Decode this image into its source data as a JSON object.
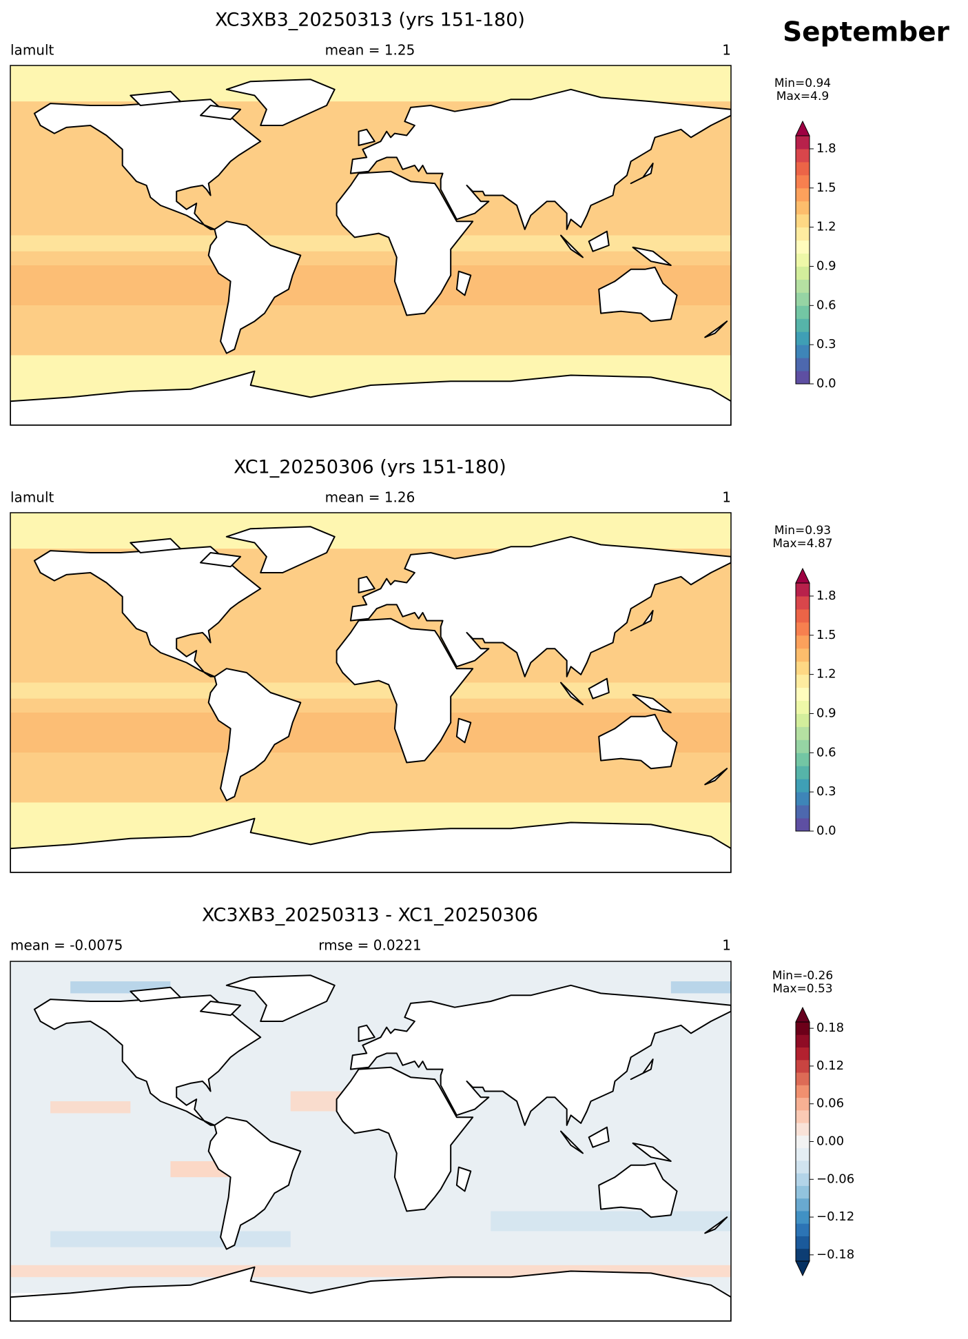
{
  "figure_title": "September",
  "panels": [
    {
      "title": "XC3XB3_20250313 (yrs 151-180)",
      "left_label": "lamult",
      "center_label": "mean = 1.25",
      "right_label": "1",
      "colorbar": {
        "min_label": "Min=0.94",
        "max_label": "Max=4.9",
        "extend": "max",
        "ylim": [
          0,
          1.9
        ],
        "yticks": [
          {
            "value": 0,
            "label": "0.0"
          },
          0.3,
          0.6,
          0.9,
          1.2,
          1.5,
          1.8
        ],
        "colors": [
          "#5e4fa2",
          "#4d68ae",
          "#3e85b8",
          "#3f9fb5",
          "#56b4a9",
          "#73c6a4",
          "#96d4a4",
          "#b5e0a2",
          "#d3ee9c",
          "#eef8a8",
          "#fffcbd",
          "#feeca0",
          "#fed884",
          "#fdbd6c",
          "#fca15c",
          "#f7804f",
          "#ec6447",
          "#d9464b",
          "#b8214b"
        ],
        "over_color": "#9e0142"
      },
      "map_style": "field"
    },
    {
      "title": "XC1_20250306 (yrs 151-180)",
      "left_label": "lamult",
      "center_label": "mean = 1.26",
      "right_label": "1",
      "colorbar": {
        "min_label": "Min=0.93",
        "max_label": "Max=4.87",
        "extend": "max",
        "ylim": [
          0,
          1.9
        ],
        "yticks": [
          {
            "value": 0,
            "label": "0.0"
          },
          0.3,
          0.6,
          0.9,
          1.2,
          1.5,
          1.8
        ],
        "colors": [
          "#5e4fa2",
          "#4d68ae",
          "#3e85b8",
          "#3f9fb5",
          "#56b4a9",
          "#73c6a4",
          "#96d4a4",
          "#b5e0a2",
          "#d3ee9c",
          "#eef8a8",
          "#fffcbd",
          "#feeca0",
          "#fed884",
          "#fdbd6c",
          "#fca15c",
          "#f7804f",
          "#ec6447",
          "#d9464b",
          "#b8214b"
        ],
        "over_color": "#9e0142"
      },
      "map_style": "field"
    },
    {
      "title": "XC3XB3_20250313 - XC1_20250306",
      "left_label": "mean = -0.0075",
      "center_label": "rmse = 0.0221",
      "right_label": "1",
      "colorbar": {
        "min_label": "Min=-0.26",
        "max_label": "Max=0.53",
        "extend": "both",
        "ylim": [
          -0.19,
          0.19
        ],
        "yticks": [
          {
            "value": -0.18,
            "label": "−0.18"
          },
          {
            "value": -0.12,
            "label": "−0.12"
          },
          {
            "value": -0.06,
            "label": "−0.06"
          },
          {
            "value": 0,
            "label": "0.00"
          },
          0.06,
          0.12,
          0.18
        ],
        "colors": [
          "#0d3d73",
          "#1b5a9b",
          "#2c74b5",
          "#4191c4",
          "#69a9d0",
          "#92c3de",
          "#b3d4e8",
          "#d0e3ef",
          "#e4eef4",
          "#f2f2f2",
          "#f9e2d8",
          "#fbcab5",
          "#f7b093",
          "#f0906f",
          "#dd6b56",
          "#c94441",
          "#b2212f",
          "#8f0c25",
          "#6c0019"
        ],
        "over_color": "#67001f",
        "under_color": "#053061"
      },
      "map_style": "difference"
    }
  ]
}
